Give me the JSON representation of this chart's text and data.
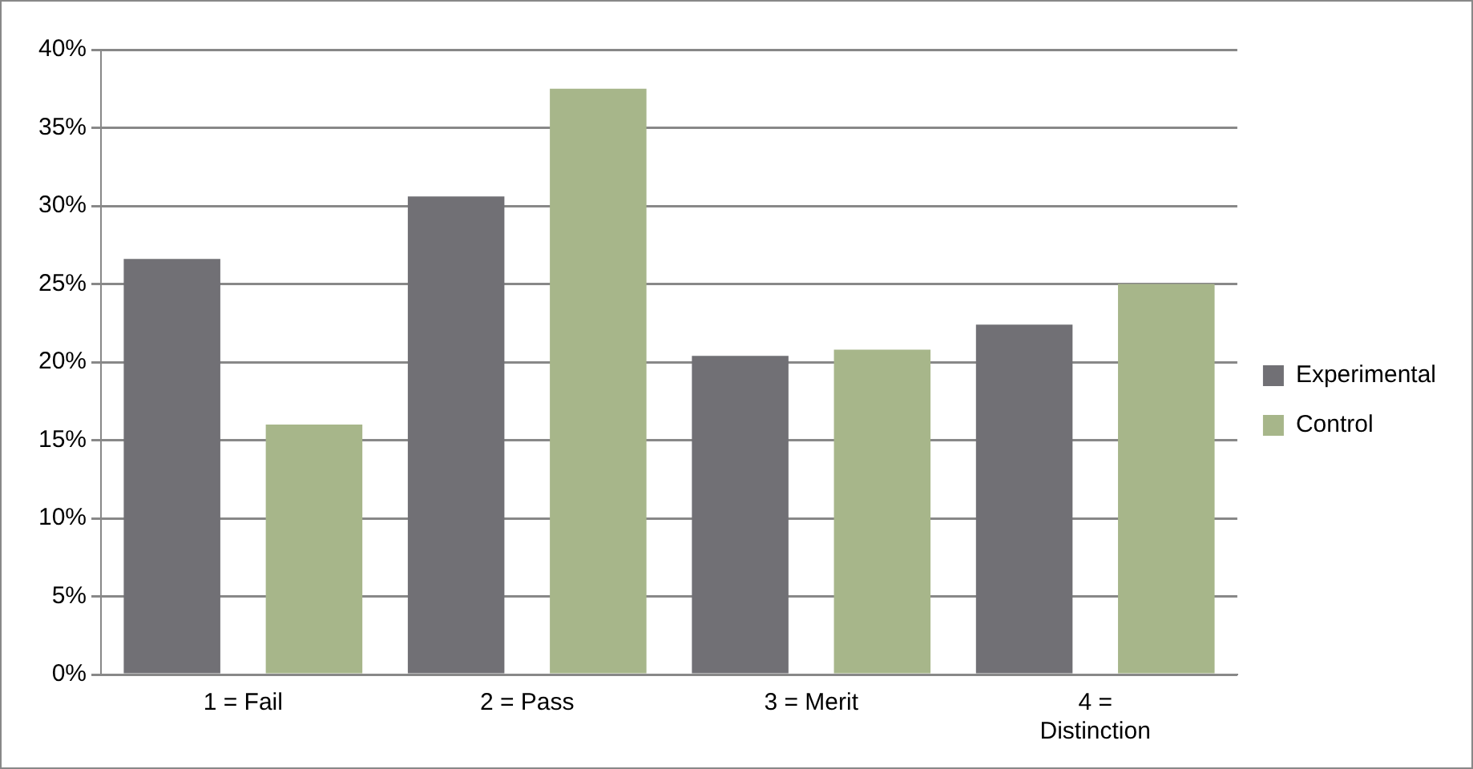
{
  "chart_data": {
    "type": "bar",
    "categories": [
      "1 = Fail",
      "2 = Pass",
      "3 = Merit",
      "4 = Distinction"
    ],
    "series": [
      {
        "name": "Experimental",
        "color": "#717075",
        "values": [
          26.6,
          30.6,
          20.4,
          22.4
        ]
      },
      {
        "name": "Control",
        "color": "#a7b68a",
        "values": [
          16.0,
          37.5,
          20.8,
          25.0
        ]
      }
    ],
    "ylim": [
      0,
      40
    ],
    "yticks": [
      {
        "value": 0,
        "label": "0%"
      },
      {
        "value": 5,
        "label": "5%"
      },
      {
        "value": 10,
        "label": "10%"
      },
      {
        "value": 15,
        "label": "15%"
      },
      {
        "value": 20,
        "label": "20%"
      },
      {
        "value": 25,
        "label": "25%"
      },
      {
        "value": 30,
        "label": "30%"
      },
      {
        "value": 35,
        "label": "35%"
      },
      {
        "value": 40,
        "label": "40%"
      }
    ],
    "grid": "y",
    "legend": "right"
  }
}
